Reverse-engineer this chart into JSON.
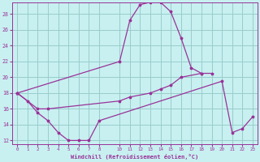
{
  "xlabel": "Windchill (Refroidissement éolien,°C)",
  "background_color": "#c8f0f0",
  "grid_color": "#99cccc",
  "line_color": "#993399",
  "ylim": [
    11.5,
    29.5
  ],
  "xlim": [
    -0.5,
    23.5
  ],
  "yticks": [
    12,
    14,
    16,
    18,
    20,
    22,
    24,
    26,
    28
  ],
  "xticks": [
    0,
    1,
    2,
    3,
    4,
    5,
    6,
    7,
    8,
    10,
    11,
    12,
    13,
    14,
    15,
    16,
    17,
    18,
    19,
    20,
    21,
    22,
    23
  ],
  "line1_x": [
    0,
    1,
    2,
    3,
    4,
    5,
    6,
    7,
    8,
    20,
    21,
    22,
    23
  ],
  "line1_y": [
    18,
    17,
    15.5,
    14.5,
    13,
    12,
    12,
    12,
    14.5,
    19.5,
    13,
    13.5,
    15
  ],
  "line2_x": [
    0,
    2,
    3,
    10,
    11,
    13,
    14,
    15,
    16,
    18,
    19
  ],
  "line2_y": [
    18,
    16,
    16,
    17,
    17.5,
    18,
    18.5,
    19,
    20,
    20.5,
    20.5
  ],
  "line3_x": [
    0,
    10,
    11,
    12,
    13,
    14,
    15,
    16,
    17,
    18
  ],
  "line3_y": [
    18,
    22,
    27.2,
    29.2,
    29.5,
    29.5,
    28.3,
    25,
    21.2,
    20.5
  ]
}
